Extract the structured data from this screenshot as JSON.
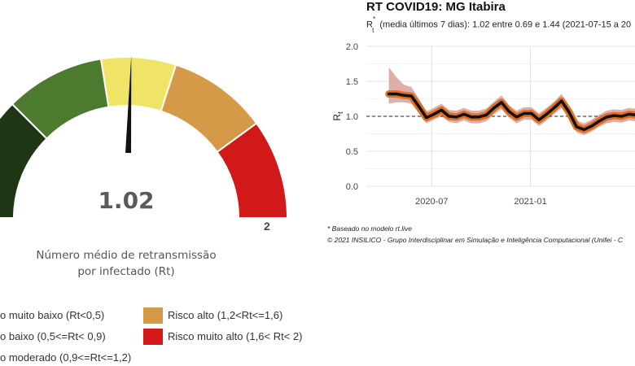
{
  "gauge": {
    "value": "1.02",
    "value_num": 1.02,
    "min": 0,
    "max": 2,
    "max_label": "2",
    "caption_line1": "Número médio de retransmissão",
    "caption_line2": "por infectado (Rt)",
    "bands": [
      {
        "from": 0,
        "to": 0.5,
        "color": "#1e3616"
      },
      {
        "from": 0.5,
        "to": 0.9,
        "color": "#4d7a2f"
      },
      {
        "from": 0.9,
        "to": 1.2,
        "color": "#f0e466"
      },
      {
        "from": 1.2,
        "to": 1.6,
        "color": "#d49a48"
      },
      {
        "from": 1.6,
        "to": 2.0,
        "color": "#d2191a"
      }
    ]
  },
  "legend": [
    {
      "label": "o muito baixo (Rt<0,5)",
      "color": "#1e3616"
    },
    {
      "label": "o baixo      (0,5<=Rt< 0,9)",
      "color": "#4d7a2f"
    },
    {
      "label": "o moderado  (0,9<=Rt<=1,2)",
      "color": "#f0e466"
    },
    {
      "label": "Risco alto (1,2<Rt<=1,6)",
      "color": "#d49a48"
    },
    {
      "label": "Risco muito alto  (1,6< Rt< 2)",
      "color": "#d2191a"
    }
  ],
  "rt_panel": {
    "title": "RT COVID19: MG Itabira",
    "subtitle_prefix": "R",
    "subtitle_sup": "*",
    "subtitle_sub": "t",
    "subtitle_rest": " (media últimos 7 dias): 1.02 entre 0.69 e 1.44 (2021-07-15 a 20",
    "note1": "* Baseado no modelo rt.live",
    "note2": "© 2021 INSILICO - Grupo Interdisciplinar em Simulação e Inteligência Computacional (Unifei - C"
  },
  "chart_data": {
    "type": "line",
    "ylabel": "Rt",
    "ylim": [
      0,
      2.0
    ],
    "y_ticks": [
      "0.0",
      "0.5",
      "1.0",
      "1.5",
      "2.0"
    ],
    "x_ticks": [
      {
        "date": "2020-07-01",
        "label": "2020-07"
      },
      {
        "date": "2021-01-01",
        "label": "2021-01"
      }
    ],
    "xlim": [
      "2020-03-01",
      "2021-07-15"
    ],
    "reference_line": 1.0,
    "series": [
      {
        "color": "#e07020",
        "band_color": "#d9a09a",
        "x": [
          "2020-04-12",
          "2020-04-26",
          "2020-05-10",
          "2020-05-24",
          "2020-06-07",
          "2020-06-21",
          "2020-07-05",
          "2020-07-19",
          "2020-08-02",
          "2020-08-16",
          "2020-08-30",
          "2020-09-13",
          "2020-09-27",
          "2020-10-11",
          "2020-10-25",
          "2020-11-08",
          "2020-11-22",
          "2020-12-06",
          "2020-12-20",
          "2021-01-03",
          "2021-01-17",
          "2021-01-31",
          "2021-02-14",
          "2021-02-28",
          "2021-03-14",
          "2021-03-28",
          "2021-04-11",
          "2021-04-25",
          "2021-05-09",
          "2021-05-23",
          "2021-06-06",
          "2021-06-20",
          "2021-07-04",
          "2021-07-15"
        ],
        "y": [
          1.32,
          1.32,
          1.3,
          1.29,
          1.14,
          0.98,
          1.03,
          1.09,
          1.0,
          0.99,
          1.03,
          0.99,
          0.99,
          1.02,
          1.12,
          1.2,
          1.07,
          0.99,
          1.04,
          1.04,
          0.95,
          1.03,
          1.12,
          1.22,
          1.06,
          0.85,
          0.81,
          0.86,
          0.93,
          0.99,
          1.01,
          1.0,
          1.03,
          1.02
        ],
        "lower": [
          1.18,
          1.2,
          1.2,
          1.18,
          1.04,
          0.9,
          0.95,
          1.0,
          0.92,
          0.9,
          0.94,
          0.9,
          0.9,
          0.93,
          1.03,
          1.1,
          0.98,
          0.9,
          0.95,
          0.95,
          0.86,
          0.94,
          1.03,
          1.12,
          0.97,
          0.77,
          0.73,
          0.78,
          0.85,
          0.9,
          0.92,
          0.91,
          0.94,
          0.93
        ],
        "upper": [
          1.7,
          1.56,
          1.45,
          1.42,
          1.25,
          1.07,
          1.12,
          1.18,
          1.09,
          1.08,
          1.12,
          1.08,
          1.08,
          1.11,
          1.21,
          1.3,
          1.16,
          1.08,
          1.13,
          1.13,
          1.04,
          1.12,
          1.21,
          1.32,
          1.15,
          0.94,
          0.9,
          0.95,
          1.02,
          1.08,
          1.1,
          1.09,
          1.12,
          1.11
        ]
      }
    ]
  }
}
